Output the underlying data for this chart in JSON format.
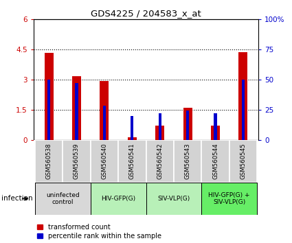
{
  "title": "GDS4225 / 204583_x_at",
  "samples": [
    "GSM560538",
    "GSM560539",
    "GSM560540",
    "GSM560541",
    "GSM560542",
    "GSM560543",
    "GSM560544",
    "GSM560545"
  ],
  "transformed_count": [
    4.33,
    3.18,
    2.92,
    0.12,
    0.72,
    1.6,
    0.72,
    4.37
  ],
  "percentile_rank": [
    50,
    47,
    28,
    20,
    22,
    24,
    22,
    50
  ],
  "ylim_left": [
    0,
    6
  ],
  "ylim_right": [
    0,
    100
  ],
  "yticks_left": [
    0,
    1.5,
    3.0,
    4.5,
    6
  ],
  "yticks_right": [
    0,
    25,
    50,
    75,
    100
  ],
  "red_color": "#cc0000",
  "blue_color": "#0000cc",
  "groups": [
    {
      "label": "uninfected\ncontrol",
      "samples": [
        0,
        1
      ],
      "color": "#d8d8d8"
    },
    {
      "label": "HIV-GFP(G)",
      "samples": [
        2,
        3
      ],
      "color": "#b8f0b8"
    },
    {
      "label": "SIV-VLP(G)",
      "samples": [
        4,
        5
      ],
      "color": "#b8f0b8"
    },
    {
      "label": "HIV-GFP(G) +\nSIV-VLP(G)",
      "samples": [
        6,
        7
      ],
      "color": "#66ee66"
    }
  ],
  "infection_label": "infection",
  "legend_items": [
    "transformed count",
    "percentile rank within the sample"
  ]
}
